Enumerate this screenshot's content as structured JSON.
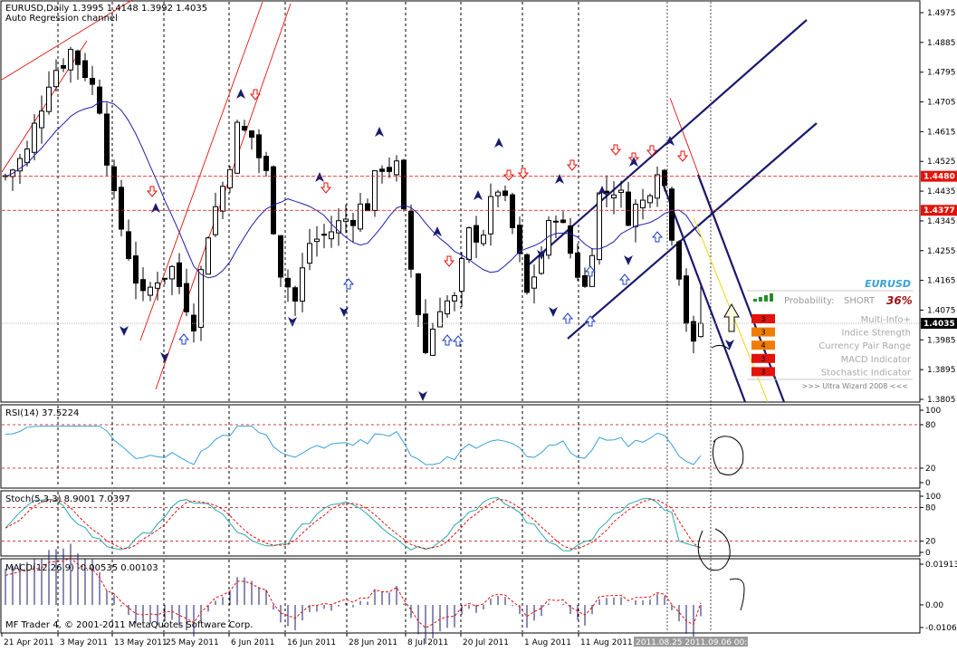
{
  "window": {
    "header_line": "EURUSD,Daily  1.3995 1.4148 1.3992 1.4035",
    "indicator_name": "Auto Regression channel",
    "copyright": "MF Trader 4, © 2001-2011 MetaQuotes Software Corp."
  },
  "panels": {
    "rsi": {
      "label": "RSI(14) 37.5224",
      "ticks": [
        "100",
        "80",
        "20",
        "0"
      ]
    },
    "stoch": {
      "label": "Stoch(5,3,3) 8.9001 7.0397",
      "ticks": [
        "100",
        "80",
        "20",
        "0"
      ]
    },
    "macd": {
      "label": "MACD(12,26,9) -0.00535 0.00103",
      "ticks": [
        "0.01913",
        "0.00",
        "-0.01066"
      ]
    }
  },
  "info_panel": {
    "symbol": "EURUSD",
    "probability_label": "Probability:",
    "probability_direction": "SHORT",
    "probability_value": "36%",
    "rows": [
      {
        "label": "Multi-Info+",
        "value": "3",
        "color": "#e3120b"
      },
      {
        "label": "Indice Strength",
        "value": "3",
        "color": "#f07d00"
      },
      {
        "label": "Currency Pair Range",
        "value": "4",
        "color": "#f07d00"
      },
      {
        "label": "MACD Indicator",
        "value": "3",
        "color": "#e3120b"
      },
      {
        "label": "Stochastic Indicator",
        "value": "3",
        "color": "#e3120b"
      }
    ],
    "footer": ">>> Ultra Wizard 2008 <<<"
  },
  "time_axis": {
    "labels": [
      "21 Apr 2011",
      "3 May 2011",
      "13 May 2011",
      "25 May 2011",
      "6 Jun 2011",
      "16 Jun 2011",
      "28 Jun 2011",
      "8 Jul 2011",
      "20 Jul 2011",
      "1 Aug 2011",
      "11 Aug 2011"
    ],
    "cursor_label": "2011.08.25 2011.09.06 00:00"
  },
  "chart_data": {
    "type": "candlestick",
    "symbol": "EURUSD",
    "timeframe": "Daily",
    "ohlc_last": {
      "open": 1.3995,
      "high": 1.4148,
      "low": 1.3992,
      "close": 1.4035
    },
    "price_ticks": [
      "1.4975",
      "1.4885",
      "1.4795",
      "1.4705",
      "1.4615",
      "1.4525",
      "1.4435",
      "1.4345",
      "1.4255",
      "1.4165",
      "1.4075",
      "1.3985",
      "1.3895",
      "1.3805"
    ],
    "ylim": [
      1.378,
      1.4985
    ],
    "horizontal_levels": [
      {
        "label": "1.4480",
        "value": 1.448,
        "color": "#e3120b"
      },
      {
        "label": "1.4377",
        "value": 1.4377,
        "color": "#e3120b"
      },
      {
        "label": "1.4035",
        "value": 1.4035,
        "color": "#000000"
      }
    ],
    "moving_average_color": "#1f1fa8",
    "rsi": {
      "current": 37.5224,
      "levels": [
        80,
        20
      ],
      "ylim": [
        0,
        100
      ],
      "color": "#3aa0d8"
    },
    "stochastic": {
      "main": 8.9001,
      "signal": 7.0397,
      "levels": [
        80,
        20
      ],
      "ylim": [
        0,
        100
      ]
    },
    "macd": {
      "main": -0.00535,
      "signal": 0.00103,
      "ylim": [
        -0.01066,
        0.01913
      ]
    }
  }
}
